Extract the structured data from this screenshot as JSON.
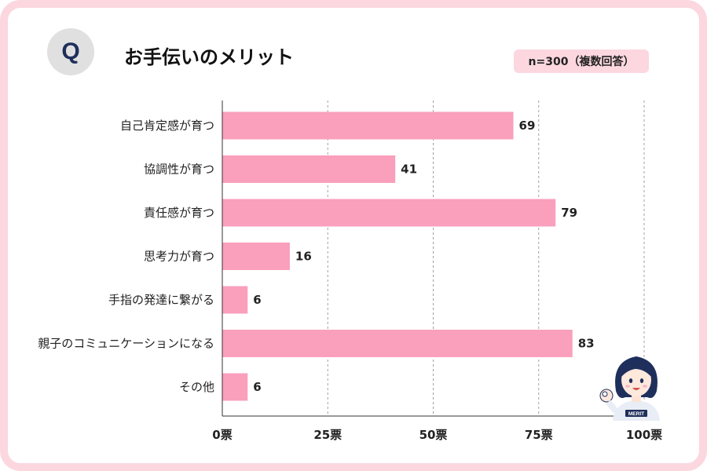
{
  "header": {
    "q_letter": "Q",
    "title": "お手伝いのメリット",
    "sample_badge": "n=300（複数回答）"
  },
  "colors": {
    "bar": "#fa9fbc",
    "frame": "#fcd7e0",
    "badge": "#fcd7e0",
    "q_circle": "#e0e0e0",
    "q_text": "#1f2f5c"
  },
  "mascot": {
    "badge_text": "MERIT"
  },
  "chart_data": {
    "type": "bar",
    "orientation": "horizontal",
    "categories": [
      "自己肯定感が育つ",
      "協調性が育つ",
      "責任感が育つ",
      "思考力が育つ",
      "手指の発達に繋がる",
      "親子のコミュニケーションになる",
      "その他"
    ],
    "values": [
      69,
      41,
      79,
      16,
      6,
      83,
      6
    ],
    "xlim": [
      0,
      100
    ],
    "xticks": [
      0,
      25,
      50,
      75,
      100
    ],
    "tick_labels": [
      "0票",
      "25票",
      "50票",
      "75票",
      "100票"
    ],
    "grid": true
  }
}
